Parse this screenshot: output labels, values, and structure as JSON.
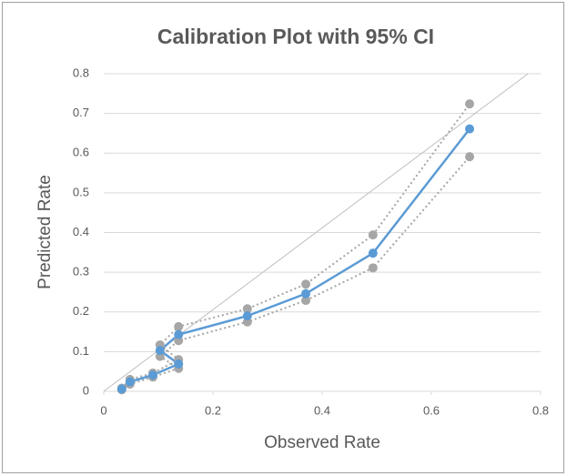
{
  "chart_data": {
    "type": "scatter",
    "title": "Calibration Plot with 95% CI",
    "x_label": "Observed Rate",
    "y_label": "Predicted Rate",
    "x": [
      0.033,
      0.048,
      0.09,
      0.137,
      0.103,
      0.137,
      0.263,
      0.37,
      0.493,
      0.67
    ],
    "series": [
      {
        "color": "#a6a6a6",
        "line": "dotted",
        "values": [
          0.008,
          0.03,
          0.046,
          0.08,
          0.117,
          0.163,
          0.208,
          0.27,
          0.394,
          0.724
        ]
      },
      {
        "color": "#a6a6a6",
        "line": "dotted",
        "values": [
          0.004,
          0.018,
          0.036,
          0.058,
          0.088,
          0.128,
          0.175,
          0.229,
          0.311,
          0.591
        ]
      },
      {
        "color": "#5b9bd5",
        "line": "solid",
        "values": [
          0.006,
          0.024,
          0.041,
          0.069,
          0.103,
          0.143,
          0.19,
          0.246,
          0.348,
          0.661
        ]
      }
    ],
    "reference_line": {
      "color": "#bfbfbf",
      "x": [
        0,
        0.777
      ],
      "y": [
        0,
        0.8
      ]
    },
    "xlim": [
      0,
      0.8
    ],
    "ylim": [
      0,
      0.8
    ],
    "xticks": [
      0,
      0.2,
      0.4,
      0.6,
      0.8
    ],
    "yticks": [
      0,
      0.1,
      0.2,
      0.3,
      0.4,
      0.5,
      0.6,
      0.7,
      0.8
    ],
    "grid": true
  }
}
